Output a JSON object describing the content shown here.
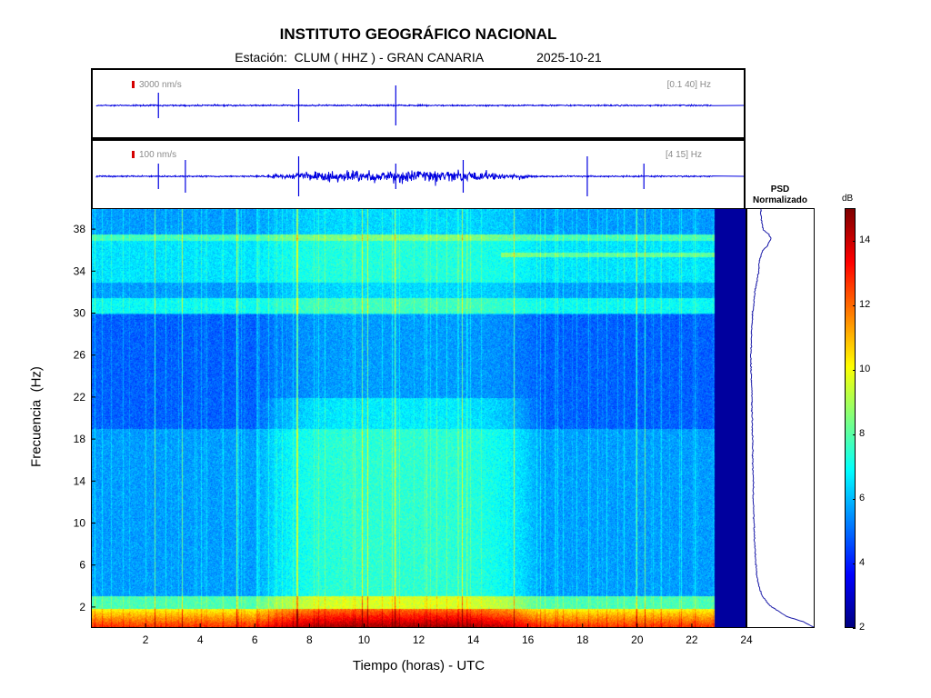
{
  "header": {
    "title": "INSTITUTO GEOGRÁFICO NACIONAL",
    "station_prefix": "Estación:",
    "station": "CLUM ( HHZ ) - GRAN CANARIA",
    "date": "2025-10-21"
  },
  "colors": {
    "trace": "#0000e0",
    "scale_mark": "#d40000",
    "psd_line": "#1a1aa8"
  },
  "chart_data": [
    {
      "type": "line",
      "name": "waveform-broadband",
      "scale_label": "3000 nm/s",
      "band_label": "[0.1 40] Hz",
      "x_range": [
        0,
        24
      ],
      "spikes_hours": [
        2.3,
        7.5,
        11.1
      ]
    },
    {
      "type": "line",
      "name": "waveform-filtered",
      "scale_label": "100 nm/s",
      "band_label": "[4 15] Hz",
      "x_range": [
        0,
        24
      ],
      "spikes_hours": [
        2.3,
        3.3,
        7.5,
        11.1,
        13.6,
        18.2,
        20.3
      ],
      "activity_window_hours": [
        6.0,
        16.5
      ]
    },
    {
      "type": "heatmap",
      "name": "spectrogram",
      "xlabel": "Tiempo (horas) - UTC",
      "ylabel": "Frecuencia  (Hz)",
      "xlim": [
        0,
        24
      ],
      "ylim": [
        0,
        40
      ],
      "x_ticks": [
        2,
        4,
        6,
        8,
        10,
        12,
        14,
        16,
        18,
        20,
        22,
        24
      ],
      "y_ticks": [
        2,
        6,
        10,
        14,
        18,
        22,
        26,
        30,
        34,
        38
      ],
      "data_end_hour": 22.85,
      "high_energy_band_hz": [
        0,
        1.5
      ],
      "day_activity_hours": [
        6.0,
        16.5
      ]
    },
    {
      "type": "line",
      "name": "psd",
      "title_line1": "PSD",
      "title_line2": "Normalizado",
      "ylim": [
        0,
        40
      ],
      "profile": [
        {
          "f": 0,
          "v": 1.0
        },
        {
          "f": 0.5,
          "v": 0.85
        },
        {
          "f": 1,
          "v": 0.6
        },
        {
          "f": 2,
          "v": 0.35
        },
        {
          "f": 3,
          "v": 0.22
        },
        {
          "f": 4,
          "v": 0.17
        },
        {
          "f": 5,
          "v": 0.14
        },
        {
          "f": 6,
          "v": 0.13
        },
        {
          "f": 7,
          "v": 0.12
        },
        {
          "f": 8,
          "v": 0.11
        },
        {
          "f": 10,
          "v": 0.1
        },
        {
          "f": 12,
          "v": 0.09
        },
        {
          "f": 14,
          "v": 0.09
        },
        {
          "f": 16,
          "v": 0.08
        },
        {
          "f": 18,
          "v": 0.08
        },
        {
          "f": 20,
          "v": 0.07
        },
        {
          "f": 22,
          "v": 0.07
        },
        {
          "f": 24,
          "v": 0.06
        },
        {
          "f": 26,
          "v": 0.05
        },
        {
          "f": 27,
          "v": 0.06
        },
        {
          "f": 28,
          "v": 0.06
        },
        {
          "f": 30,
          "v": 0.08
        },
        {
          "f": 31,
          "v": 0.1
        },
        {
          "f": 32,
          "v": 0.11
        },
        {
          "f": 33,
          "v": 0.14
        },
        {
          "f": 34,
          "v": 0.17
        },
        {
          "f": 35,
          "v": 0.18
        },
        {
          "f": 36,
          "v": 0.23
        },
        {
          "f": 36.5,
          "v": 0.3
        },
        {
          "f": 37.2,
          "v": 0.36
        },
        {
          "f": 37.6,
          "v": 0.32
        },
        {
          "f": 38,
          "v": 0.24
        },
        {
          "f": 39,
          "v": 0.21
        },
        {
          "f": 40,
          "v": 0.2
        }
      ]
    },
    {
      "type": "heatmap",
      "name": "colorbar",
      "label": "dB",
      "range": [
        2,
        15
      ],
      "ticks": [
        2,
        4,
        6,
        8,
        10,
        12,
        14
      ]
    }
  ]
}
